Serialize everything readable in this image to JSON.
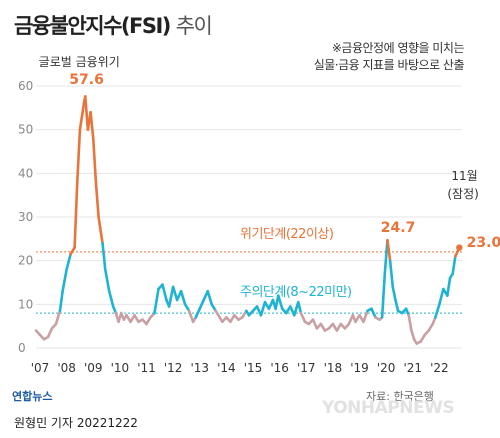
{
  "title": {
    "main": "금융불안지수(FSI)",
    "sub": "추이"
  },
  "note": [
    "※금융안정에 영향을 미치는",
    "실물·금융 지표를 바탕으로 산출"
  ],
  "footer": {
    "logo": "연합뉴스",
    "source": "자료: 한국은행",
    "byline": "원형민 기자  20221222",
    "watermark": "YONHAPNEWS"
  },
  "colors": {
    "crisis": "#e8743b",
    "caution": "#1fb3d2",
    "normal": "#c8a0a4",
    "grid": "#e6e6e6"
  },
  "chart_data": {
    "type": "line",
    "title": "금융불안지수(FSI) 추이",
    "ylim": [
      0,
      60
    ],
    "yticks": [
      0,
      10,
      20,
      30,
      40,
      50,
      60
    ],
    "xlabels": [
      "'07",
      "'08",
      "'09",
      "'10",
      "'11",
      "'12",
      "'13",
      "'14",
      "'15",
      "'16",
      "'17",
      "'18",
      "'19",
      "'20",
      "'21",
      "'22"
    ],
    "x_start": 2007,
    "x_end": 2023,
    "thresholds": [
      {
        "name": "위기단계(22이상)",
        "value": 22,
        "color": "#e8743b"
      },
      {
        "name": "주의단계(8~22미만)",
        "value": 8,
        "color": "#1fb3d2"
      }
    ],
    "annotations": [
      {
        "text": "글로벌 금융위기",
        "x": 2008.2,
        "y": 60
      },
      {
        "text": "57.6",
        "x": 2008.85,
        "y": 57.6,
        "color": "#e8743b"
      },
      {
        "text": "24.7",
        "x": 2020.2,
        "y": 24.7,
        "color": "#e8743b"
      },
      {
        "text": "11월",
        "x": 2022.9,
        "y": 30
      },
      {
        "text": "(잠정)",
        "x": 2022.9,
        "y": 27
      },
      {
        "text": "23.0",
        "x": 2022.9,
        "y": 23.0,
        "color": "#e8743b"
      }
    ],
    "series": [
      {
        "points": [
          [
            2007.0,
            4
          ],
          [
            2007.15,
            3
          ],
          [
            2007.3,
            2
          ],
          [
            2007.45,
            2.5
          ],
          [
            2007.6,
            4.5
          ],
          [
            2007.75,
            5.5
          ],
          [
            2007.9,
            8.5
          ],
          [
            2008.0,
            13
          ],
          [
            2008.15,
            18
          ],
          [
            2008.3,
            21.5
          ],
          [
            2008.45,
            23
          ],
          [
            2008.55,
            38
          ],
          [
            2008.65,
            50
          ],
          [
            2008.8,
            56
          ],
          [
            2008.85,
            57.6
          ],
          [
            2008.95,
            50
          ],
          [
            2009.05,
            54
          ],
          [
            2009.15,
            48
          ],
          [
            2009.25,
            38
          ],
          [
            2009.35,
            30
          ],
          [
            2009.5,
            24
          ],
          [
            2009.6,
            18
          ],
          [
            2009.75,
            13
          ],
          [
            2009.9,
            9.5
          ],
          [
            2010.0,
            8
          ],
          [
            2010.1,
            6
          ],
          [
            2010.2,
            8
          ],
          [
            2010.3,
            6.5
          ],
          [
            2010.4,
            7.5
          ],
          [
            2010.55,
            6
          ],
          [
            2010.7,
            7.5
          ],
          [
            2010.85,
            6
          ],
          [
            2011.0,
            6.5
          ],
          [
            2011.15,
            5.5
          ],
          [
            2011.3,
            7
          ],
          [
            2011.45,
            8
          ],
          [
            2011.6,
            13.5
          ],
          [
            2011.75,
            14.5
          ],
          [
            2011.9,
            11
          ],
          [
            2012.0,
            9.5
          ],
          [
            2012.15,
            14
          ],
          [
            2012.3,
            11
          ],
          [
            2012.45,
            13
          ],
          [
            2012.6,
            10
          ],
          [
            2012.75,
            8.5
          ],
          [
            2012.9,
            6
          ],
          [
            2013.0,
            7
          ],
          [
            2013.15,
            9
          ],
          [
            2013.3,
            11
          ],
          [
            2013.45,
            13
          ],
          [
            2013.6,
            10
          ],
          [
            2013.75,
            8.5
          ],
          [
            2013.9,
            7
          ],
          [
            2014.0,
            6
          ],
          [
            2014.15,
            7
          ],
          [
            2014.3,
            6
          ],
          [
            2014.45,
            7.5
          ],
          [
            2014.6,
            6.5
          ],
          [
            2014.75,
            7
          ],
          [
            2014.9,
            8.5
          ],
          [
            2015.0,
            7.5
          ],
          [
            2015.15,
            8.5
          ],
          [
            2015.3,
            9.5
          ],
          [
            2015.45,
            7.5
          ],
          [
            2015.6,
            10.5
          ],
          [
            2015.75,
            9
          ],
          [
            2015.9,
            11
          ],
          [
            2016.0,
            9
          ],
          [
            2016.1,
            12
          ],
          [
            2016.25,
            9
          ],
          [
            2016.4,
            8
          ],
          [
            2016.55,
            9.5
          ],
          [
            2016.7,
            7.5
          ],
          [
            2016.85,
            10.5
          ],
          [
            2016.95,
            8
          ],
          [
            2017.1,
            6
          ],
          [
            2017.25,
            5.5
          ],
          [
            2017.4,
            6.5
          ],
          [
            2017.55,
            4.5
          ],
          [
            2017.7,
            5.5
          ],
          [
            2017.85,
            4
          ],
          [
            2018.0,
            4.5
          ],
          [
            2018.15,
            5.5
          ],
          [
            2018.3,
            4
          ],
          [
            2018.45,
            5.5
          ],
          [
            2018.6,
            4.5
          ],
          [
            2018.75,
            5.5
          ],
          [
            2018.9,
            7.5
          ],
          [
            2019.0,
            6
          ],
          [
            2019.15,
            7.5
          ],
          [
            2019.3,
            6
          ],
          [
            2019.45,
            8.5
          ],
          [
            2019.6,
            9
          ],
          [
            2019.75,
            7
          ],
          [
            2019.9,
            6.5
          ],
          [
            2020.0,
            7
          ],
          [
            2020.1,
            17
          ],
          [
            2020.2,
            24.7
          ],
          [
            2020.3,
            20
          ],
          [
            2020.4,
            14
          ],
          [
            2020.5,
            11
          ],
          [
            2020.6,
            8.5
          ],
          [
            2020.75,
            8
          ],
          [
            2020.9,
            9
          ],
          [
            2021.0,
            7.5
          ],
          [
            2021.1,
            4
          ],
          [
            2021.2,
            2
          ],
          [
            2021.3,
            1
          ],
          [
            2021.45,
            1.5
          ],
          [
            2021.6,
            3
          ],
          [
            2021.75,
            4
          ],
          [
            2021.9,
            5.5
          ],
          [
            2022.0,
            7
          ],
          [
            2022.15,
            10
          ],
          [
            2022.3,
            13.5
          ],
          [
            2022.45,
            12
          ],
          [
            2022.55,
            16
          ],
          [
            2022.65,
            17
          ],
          [
            2022.75,
            21
          ],
          [
            2022.9,
            23.0
          ]
        ]
      }
    ]
  }
}
